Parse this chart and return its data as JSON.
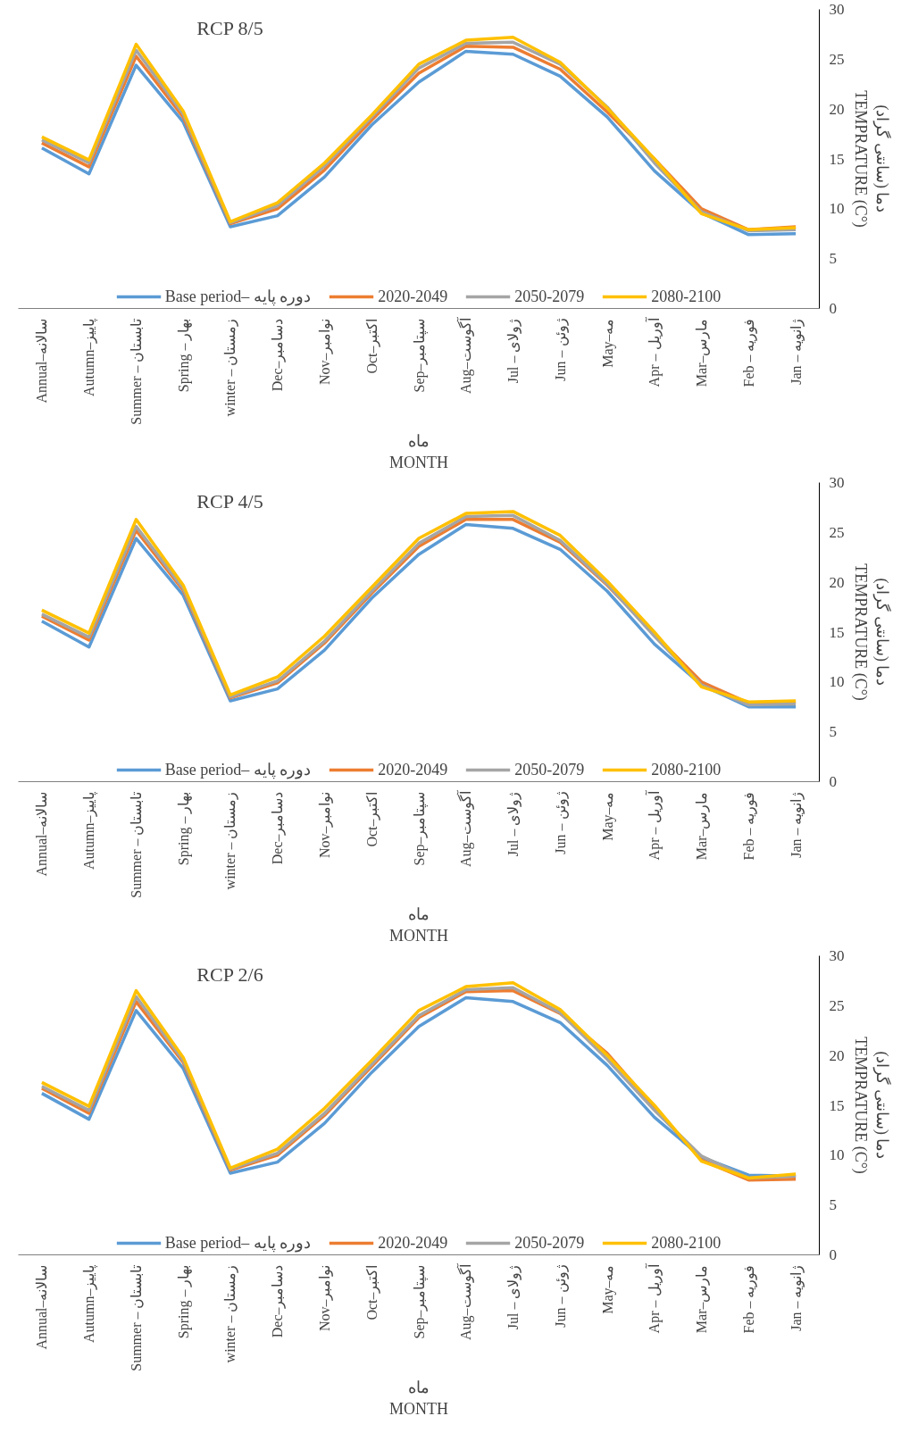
{
  "chart_data": [
    {
      "type": "line",
      "title": "RCP 8/5",
      "xlabel": "ماه\nMONTH",
      "ylabel": "دما (سانتی گراد)\nTEMPRATURE (C°)",
      "categories": [
        "Annual–سالانه",
        "Autumn–پاییز",
        "Summer – تابستان",
        "Spring – بهار",
        "winter – زمستان",
        "Dec–دسامبر",
        "Nov–نوامبر",
        "Oct–اکتبر",
        "Sep–سپتامبر",
        "Aug–آگوست",
        "Jul – ژولای",
        "Jun – ژوئن",
        "May–مه",
        "Apr – آوریل",
        "Mar–مارس",
        "Feb – فوریه",
        "Jan – ژانویه"
      ],
      "ylim": [
        0,
        30
      ],
      "yticks": [
        0,
        5,
        10,
        15,
        20,
        25,
        30
      ],
      "grid": false,
      "legend": "bottom",
      "line_style": "solid",
      "series": [
        {
          "name": "Base period– دوره پایه",
          "color": "#5b9bd5",
          "values": [
            16.1,
            13.5,
            24.4,
            18.7,
            8.2,
            9.3,
            13.2,
            18.4,
            22.7,
            25.8,
            25.5,
            23.3,
            19.2,
            13.8,
            9.6,
            7.4,
            7.5
          ]
        },
        {
          "name": "2020-2049",
          "color": "#ed7d31",
          "values": [
            16.6,
            14.2,
            25.3,
            19.2,
            8.5,
            10.0,
            13.9,
            18.9,
            23.6,
            26.3,
            26.2,
            24.0,
            19.7,
            15.0,
            10.0,
            7.9,
            8.2
          ]
        },
        {
          "name": "2050-2079",
          "color": "#a5a5a5",
          "values": [
            16.9,
            14.6,
            25.9,
            19.5,
            8.6,
            10.3,
            14.3,
            19.2,
            24.1,
            26.6,
            26.7,
            24.5,
            20.2,
            14.6,
            9.7,
            7.8,
            7.9
          ]
        },
        {
          "name": "2080-2100",
          "color": "#ffc000",
          "values": [
            17.2,
            14.9,
            26.5,
            19.8,
            8.7,
            10.6,
            14.6,
            19.4,
            24.5,
            26.9,
            27.2,
            24.7,
            20.1,
            15.0,
            9.5,
            7.9,
            8.1
          ]
        }
      ]
    },
    {
      "type": "line",
      "title": "RCP 4/5",
      "xlabel": "ماه\nMONTH",
      "ylabel": "دما (سانتی گراد)\nTEMPRATURE (C°)",
      "categories": [
        "Annual–سالانه",
        "Autumn–پاییز",
        "Summer – تابستان",
        "Spring – بهار",
        "winter – زمستان",
        "Dec–دسامبر",
        "Nov–نوامبر",
        "Oct–اکتبر",
        "Sep–سپتامبر",
        "Aug–آگوست",
        "Jul – ژولای",
        "Jun – ژوئن",
        "May–مه",
        "Apr – آوریل",
        "Mar–مارس",
        "Feb – فوریه",
        "Jan – ژانویه"
      ],
      "ylim": [
        0,
        30
      ],
      "yticks": [
        0,
        5,
        10,
        15,
        20,
        25,
        30
      ],
      "grid": false,
      "legend": "bottom",
      "line_style": "solid",
      "series": [
        {
          "name": "Base period– دوره پایه",
          "color": "#5b9bd5",
          "values": [
            16.1,
            13.5,
            24.4,
            18.7,
            8.1,
            9.3,
            13.2,
            18.4,
            22.8,
            25.8,
            25.4,
            23.3,
            19.1,
            13.8,
            9.7,
            7.5,
            7.5
          ]
        },
        {
          "name": "2020-2049",
          "color": "#ed7d31",
          "values": [
            16.6,
            14.2,
            25.2,
            19.2,
            8.4,
            9.9,
            13.9,
            18.9,
            23.6,
            26.3,
            26.3,
            24.0,
            19.7,
            14.8,
            10.0,
            7.9,
            8.0
          ]
        },
        {
          "name": "2050-2079",
          "color": "#a5a5a5",
          "values": [
            16.8,
            14.5,
            25.6,
            19.4,
            8.5,
            10.1,
            14.1,
            19.1,
            23.9,
            26.6,
            26.7,
            24.2,
            19.8,
            14.6,
            9.7,
            7.7,
            7.8
          ]
        },
        {
          "name": "2080-2100",
          "color": "#ffc000",
          "values": [
            17.2,
            14.9,
            26.3,
            19.7,
            8.7,
            10.5,
            14.6,
            19.5,
            24.4,
            26.9,
            27.1,
            24.7,
            20.1,
            15.0,
            9.5,
            8.0,
            8.1
          ]
        }
      ]
    },
    {
      "type": "line",
      "title": "RCP 2/6",
      "xlabel": "ماه\nMONTH",
      "ylabel": "دما (سانتی گراد)\nTEMPRATURE (C°)",
      "categories": [
        "Annual–سالانه",
        "Autumn–پاییز",
        "Summer – تابستان",
        "Spring – بهار",
        "winter – زمستان",
        "Dec–دسامبر",
        "Nov–نوامبر",
        "Oct–اکتبر",
        "Sep–سپتامبر",
        "Aug–آگوست",
        "Jul – ژولای",
        "Jun – ژوئن",
        "May–مه",
        "Apr – آوریل",
        "Mar–مارس",
        "Feb – فوریه",
        "Jan – ژانویه"
      ],
      "ylim": [
        0,
        30
      ],
      "yticks": [
        0,
        5,
        10,
        15,
        20,
        25,
        30
      ],
      "grid": false,
      "legend": "bottom",
      "line_style": "solid",
      "series": [
        {
          "name": "Base period– دوره پایه",
          "color": "#5b9bd5",
          "values": [
            16.2,
            13.6,
            24.5,
            18.7,
            8.2,
            9.3,
            13.2,
            18.3,
            22.9,
            25.8,
            25.4,
            23.3,
            19.0,
            13.8,
            9.8,
            8.0,
            7.9
          ]
        },
        {
          "name": "2020-2049",
          "color": "#ed7d31",
          "values": [
            16.7,
            14.2,
            25.4,
            19.3,
            8.5,
            10.0,
            14.0,
            18.9,
            23.8,
            26.4,
            26.5,
            24.2,
            20.2,
            14.8,
            9.5,
            7.5,
            7.6
          ]
        },
        {
          "name": "2050-2079",
          "color": "#a5a5a5",
          "values": [
            16.9,
            14.5,
            25.9,
            19.5,
            8.6,
            10.2,
            14.2,
            19.1,
            24.0,
            26.6,
            26.8,
            24.3,
            19.6,
            14.5,
            9.9,
            7.7,
            7.9
          ]
        },
        {
          "name": "2080-2100",
          "color": "#ffc000",
          "values": [
            17.3,
            14.9,
            26.5,
            19.8,
            8.7,
            10.6,
            14.7,
            19.5,
            24.5,
            26.9,
            27.3,
            24.6,
            20.0,
            15.0,
            9.4,
            7.7,
            8.1
          ]
        }
      ]
    }
  ]
}
